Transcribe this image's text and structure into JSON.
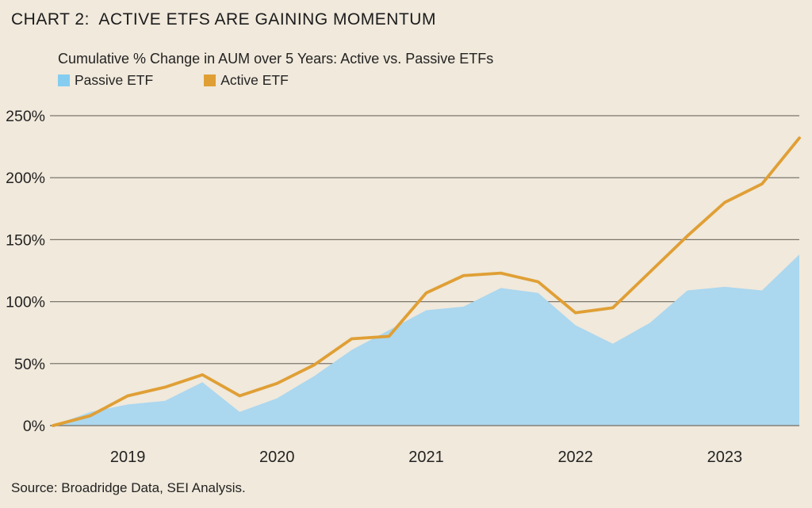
{
  "colors": {
    "background": "#F0E9DC",
    "gridline": "#7C766B",
    "text": "#242322"
  },
  "chart_data": {
    "type": "area",
    "title": "CHART 2:  ACTIVE ETFS ARE GAINING MOMENTUM",
    "subtitle": "Cumulative % Change in AUM over 5 Years: Active vs. Passive ETFs",
    "source": "Source: Broadridge Data, SEI Analysis.",
    "grid": true,
    "legend_position": "top-left below subtitle",
    "x_axis": {
      "tick_labels": [
        "2019",
        "2020",
        "2021",
        "2022",
        "2023"
      ],
      "tick_point_indices": [
        2,
        6,
        10,
        14,
        18
      ],
      "n_points": 21
    },
    "y_axis": {
      "ticks_pct": [
        0,
        50,
        100,
        150,
        200,
        250
      ],
      "tick_suffix": "%",
      "min": 0,
      "max": 250
    },
    "series": [
      {
        "name": "Passive ETF",
        "type": "area",
        "color": "#85CDF0",
        "fill": "#ABD7EF",
        "values_pct": [
          0,
          11,
          17,
          20,
          35,
          11,
          22,
          40,
          61,
          77,
          93,
          96,
          111,
          107,
          81,
          66,
          83,
          109,
          112,
          109,
          138
        ]
      },
      {
        "name": "Active ETF",
        "type": "line",
        "color": "#E09F35",
        "stroke_width": 3.8,
        "values_pct": [
          0,
          8,
          24,
          31,
          41,
          24,
          34,
          49,
          70,
          72,
          107,
          121,
          123,
          116,
          91,
          95,
          124,
          153,
          180,
          195,
          232
        ]
      }
    ]
  }
}
